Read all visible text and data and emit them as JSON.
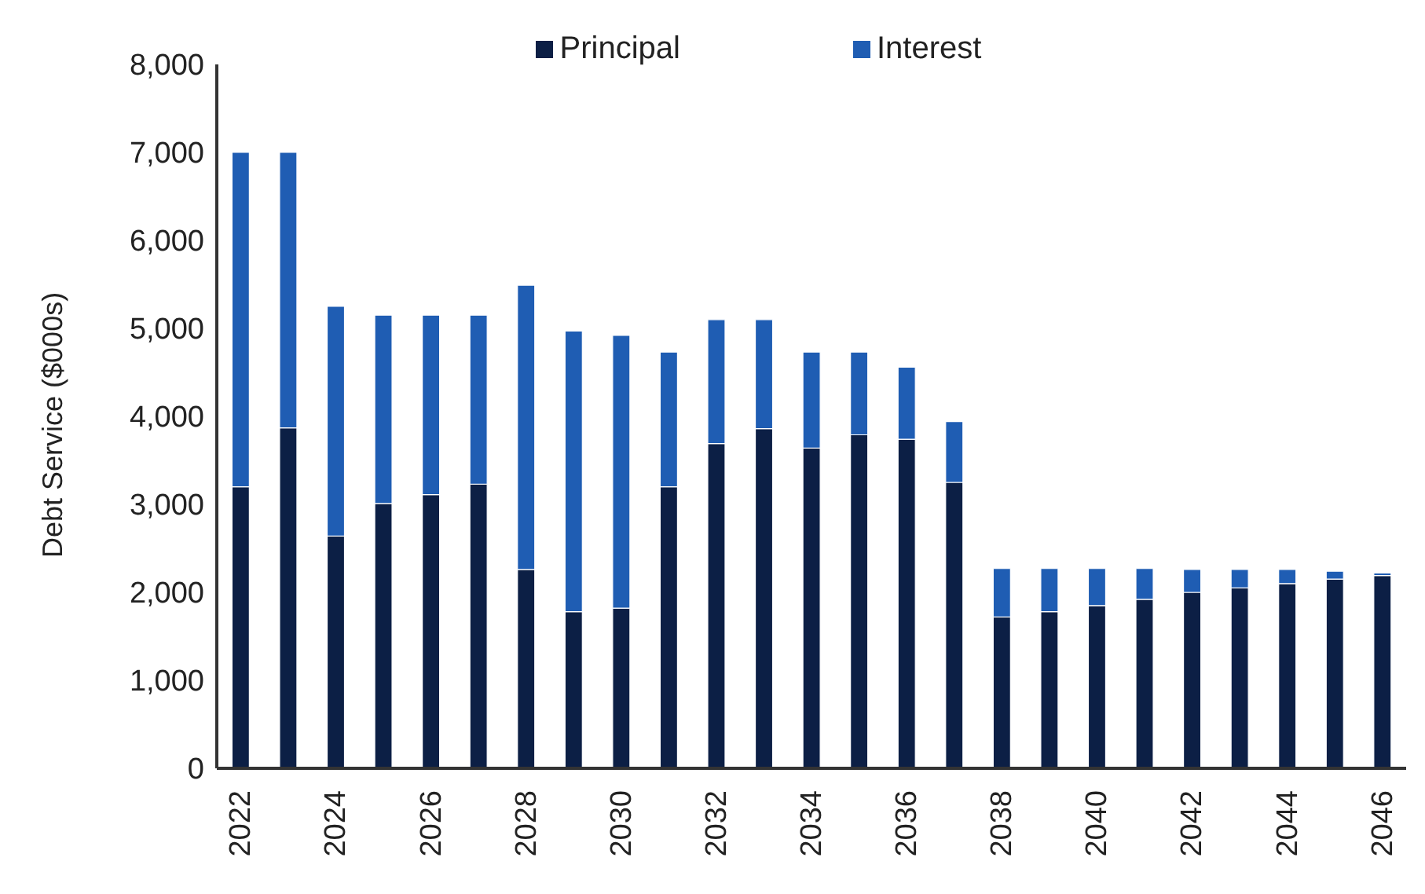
{
  "chart_data": {
    "type": "bar",
    "stacked": true,
    "ylabel": "Debt Service ($000s)",
    "categories": [
      "2022",
      null,
      "2024",
      null,
      "2026",
      null,
      "2028",
      null,
      "2030",
      null,
      "2032",
      null,
      "2034",
      null,
      "2036",
      null,
      "2038",
      null,
      "2040",
      null,
      "2042",
      null,
      "2044",
      null,
      "2046"
    ],
    "series": [
      {
        "name": "Principal",
        "color": "#0c1f45",
        "values": [
          3200,
          3870,
          2640,
          3010,
          3110,
          3230,
          2260,
          1780,
          1820,
          3200,
          3690,
          3860,
          3640,
          3790,
          3740,
          3250,
          1720,
          1780,
          1850,
          1920,
          2000,
          2050,
          2100,
          2150,
          2190
        ]
      },
      {
        "name": "Interest",
        "color": "#1f5db3",
        "values": [
          3800,
          3130,
          2610,
          2140,
          2040,
          1920,
          3230,
          3190,
          3100,
          1530,
          1410,
          1240,
          1090,
          940,
          820,
          690,
          550,
          490,
          420,
          350,
          260,
          210,
          160,
          90,
          30
        ]
      }
    ],
    "ylim": [
      0,
      8000
    ],
    "yticks": [
      {
        "value": 0,
        "label": "0"
      },
      {
        "value": 1000,
        "label": "1,000"
      },
      {
        "value": 2000,
        "label": "2,000"
      },
      {
        "value": 3000,
        "label": "3,000"
      },
      {
        "value": 4000,
        "label": "4,000"
      },
      {
        "value": 5000,
        "label": "5,000"
      },
      {
        "value": 6000,
        "label": "6,000"
      },
      {
        "value": 7000,
        "label": "7,000"
      },
      {
        "value": 8000,
        "label": "8,000"
      }
    ],
    "grid": false,
    "legend": "top"
  }
}
